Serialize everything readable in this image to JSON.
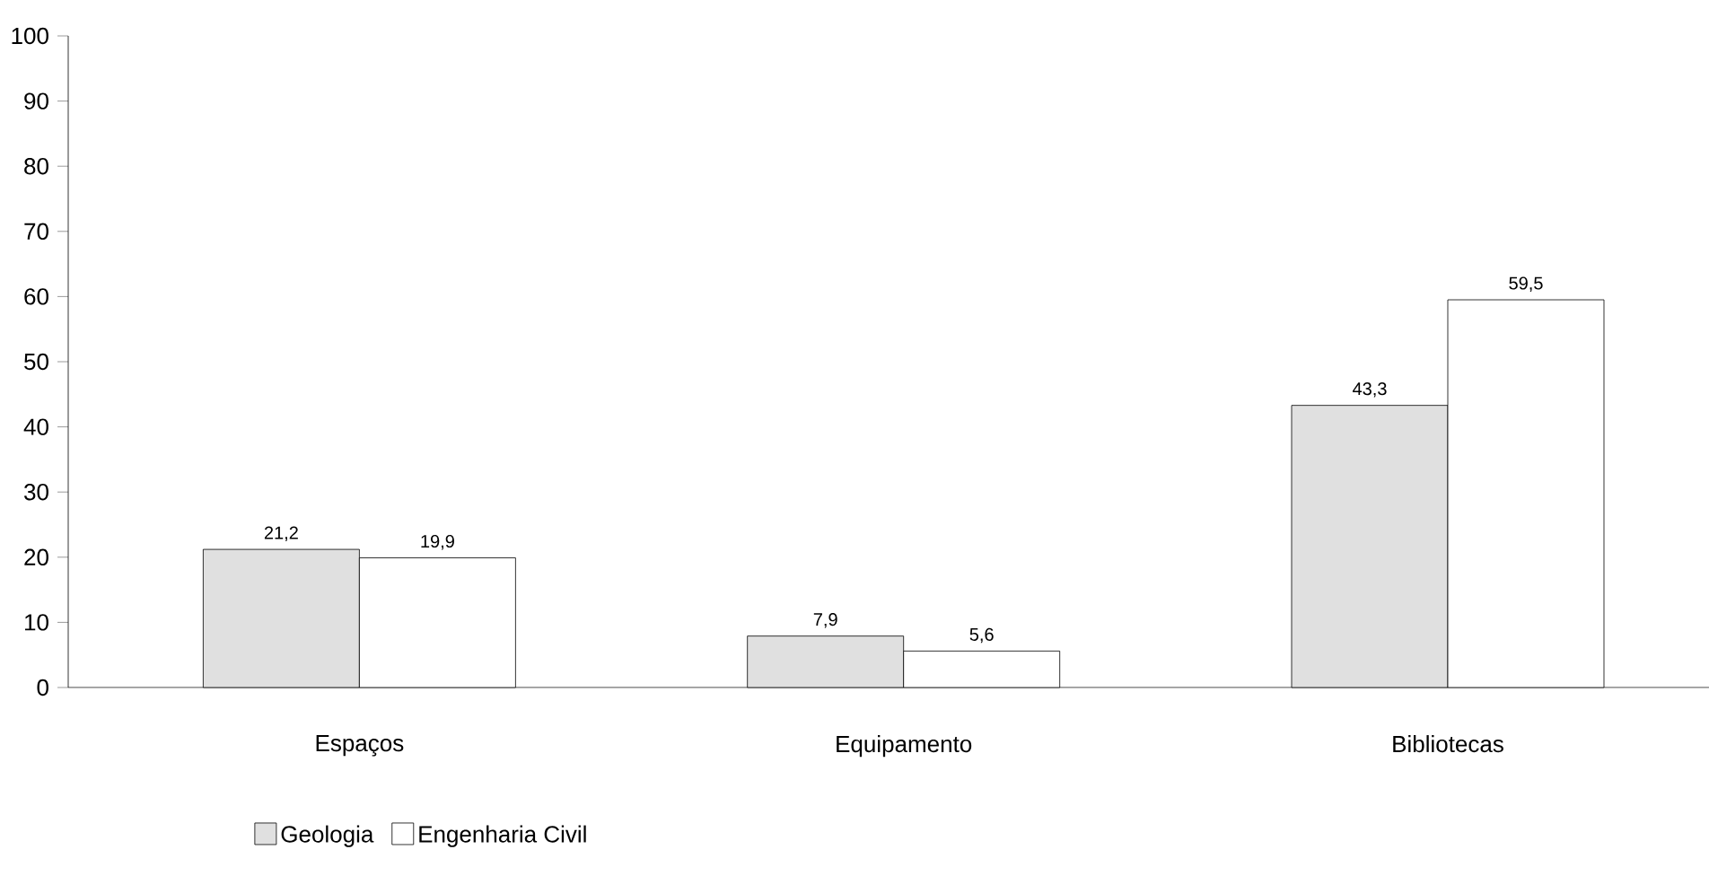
{
  "chart_data": {
    "type": "bar",
    "categories": [
      "Espaços",
      "Equipamento",
      "Bibliotecas"
    ],
    "series": [
      {
        "name": "Geologia",
        "color": "#e0e0e0",
        "values": [
          21.2,
          7.9,
          43.3
        ],
        "value_labels": [
          "21,2",
          "7,9",
          "43,3"
        ]
      },
      {
        "name": "Engenharia Civil",
        "color": "#ffffff",
        "values": [
          19.9,
          5.6,
          59.5
        ],
        "value_labels": [
          "19,9",
          "5,6",
          "59,5"
        ]
      }
    ],
    "ylim": [
      0,
      100
    ],
    "yticks": [
      0,
      10,
      20,
      30,
      40,
      50,
      60,
      70,
      80,
      90,
      100
    ],
    "grid": false,
    "legend": "bottom left"
  }
}
